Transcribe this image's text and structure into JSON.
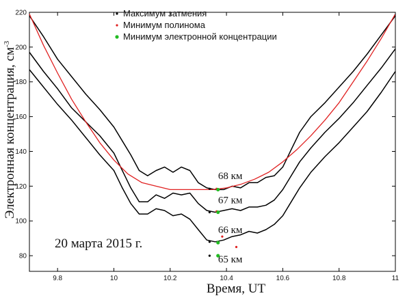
{
  "chart_data": {
    "type": "line",
    "title": "",
    "xlabel": "Время, UT",
    "ylabel": "Электронная концентрация, см",
    "ylabel_sup": "-3",
    "xlim": [
      9.7,
      11.0
    ],
    "ylim": [
      71,
      220
    ],
    "x_ticks": [
      9.8,
      10.0,
      10.2,
      10.4,
      10.6,
      10.8,
      11.0
    ],
    "x_tick_labels": [
      "9.8",
      "10",
      "10.2",
      "10.4",
      "10.6",
      "10.8",
      "11"
    ],
    "y_ticks": [
      80,
      100,
      120,
      140,
      160,
      180,
      200,
      220
    ],
    "y_tick_labels": [
      "80",
      "100",
      "120",
      "140",
      "160",
      "180",
      "200",
      "220"
    ],
    "grid": false,
    "legend_position": "top",
    "legend": [
      {
        "label": "Максимум затмения",
        "color": "#000000"
      },
      {
        "label": "Минимум полинома",
        "color": "#e02020"
      },
      {
        "label": "Минимум электронной концентрации",
        "color": "#22bb22"
      }
    ],
    "date_label": "20 марта 2015 г.",
    "series": [
      {
        "label": "68 км",
        "color": "#000000",
        "x": [
          9.7,
          9.75,
          9.8,
          9.85,
          9.9,
          9.95,
          10.0,
          10.03,
          10.06,
          10.09,
          10.12,
          10.15,
          10.18,
          10.21,
          10.24,
          10.27,
          10.3,
          10.33,
          10.36,
          10.39,
          10.42,
          10.45,
          10.48,
          10.51,
          10.54,
          10.57,
          10.6,
          10.63,
          10.66,
          10.7,
          10.75,
          10.8,
          10.85,
          10.9,
          10.95,
          11.0
        ],
        "y": [
          218,
          206,
          193,
          183,
          173,
          164,
          154,
          146,
          138,
          129,
          126,
          129,
          131,
          128,
          131,
          129,
          122,
          119,
          118,
          118,
          120,
          119,
          122,
          122,
          125,
          126,
          131,
          141,
          151,
          160,
          168,
          177,
          186,
          196,
          207,
          218
        ]
      },
      {
        "label": "67 км",
        "color": "#000000",
        "x": [
          9.7,
          9.75,
          9.8,
          9.85,
          9.9,
          9.95,
          10.0,
          10.03,
          10.06,
          10.09,
          10.12,
          10.15,
          10.18,
          10.21,
          10.24,
          10.27,
          10.3,
          10.33,
          10.36,
          10.39,
          10.42,
          10.45,
          10.48,
          10.51,
          10.54,
          10.57,
          10.6,
          10.63,
          10.66,
          10.7,
          10.75,
          10.8,
          10.85,
          10.9,
          10.95,
          11.0
        ],
        "y": [
          197,
          186,
          176,
          165,
          157,
          149,
          139,
          129,
          119,
          111,
          111,
          115,
          113,
          116,
          115,
          116,
          110,
          106,
          105,
          106,
          107,
          106,
          108,
          108,
          109,
          112,
          118,
          126,
          134,
          142,
          151,
          159,
          168,
          178,
          188,
          199
        ]
      },
      {
        "label": "66 км",
        "color": "#000000",
        "x": [
          9.7,
          9.75,
          9.8,
          9.85,
          9.9,
          9.95,
          10.0,
          10.03,
          10.06,
          10.09,
          10.12,
          10.15,
          10.18,
          10.21,
          10.24,
          10.27,
          10.3,
          10.33,
          10.36,
          10.39,
          10.42,
          10.45,
          10.48,
          10.51,
          10.54,
          10.57,
          10.6,
          10.63,
          10.66,
          10.7,
          10.75,
          10.8,
          10.85,
          10.9,
          10.95,
          11.0
        ],
        "y": [
          187,
          177,
          167,
          158,
          148,
          138,
          129,
          119,
          110,
          104,
          104,
          107,
          106,
          103,
          104,
          101,
          95,
          89,
          88,
          89,
          91,
          92,
          94,
          93,
          95,
          98,
          103,
          111,
          119,
          128,
          137,
          145,
          154,
          163,
          174,
          186
        ]
      },
      {
        "label": "Полином",
        "color": "#e02020",
        "x": [
          9.7,
          9.75,
          9.8,
          9.85,
          9.9,
          9.95,
          10.0,
          10.05,
          10.1,
          10.15,
          10.2,
          10.25,
          10.3,
          10.35,
          10.4,
          10.45,
          10.5,
          10.55,
          10.6,
          10.65,
          10.7,
          10.75,
          10.8,
          10.85,
          10.9,
          10.95,
          11.0
        ],
        "y": [
          219,
          201,
          185,
          170,
          157,
          145,
          135,
          127,
          122,
          120,
          118,
          118,
          118,
          118,
          119,
          121,
          124,
          128,
          134,
          141,
          149,
          158,
          168,
          180,
          192,
          205,
          219
        ]
      }
    ],
    "markers": {
      "eclipse_max": {
        "color": "#000000",
        "x": [
          10.34,
          10.34,
          10.34,
          10.34
        ],
        "y": [
          118.5,
          105,
          88,
          80
        ]
      },
      "poly_min": {
        "color": "#e02020",
        "x": [
          10.365,
          10.365,
          10.385,
          10.435
        ],
        "y": [
          118.5,
          105.5,
          91,
          85
        ]
      },
      "conc_min": {
        "color": "#22bb22",
        "x": [
          10.37,
          10.37,
          10.37,
          10.37
        ],
        "y": [
          118,
          105,
          87.5,
          80
        ]
      }
    },
    "annotations": [
      {
        "text": "68 км",
        "x": 10.38,
        "y": 126
      },
      {
        "text": "67 км",
        "x": 10.38,
        "y": 112
      },
      {
        "text": "66 км",
        "x": 10.38,
        "y": 95
      },
      {
        "text": "65 км",
        "x": 10.38,
        "y": 78
      }
    ]
  }
}
